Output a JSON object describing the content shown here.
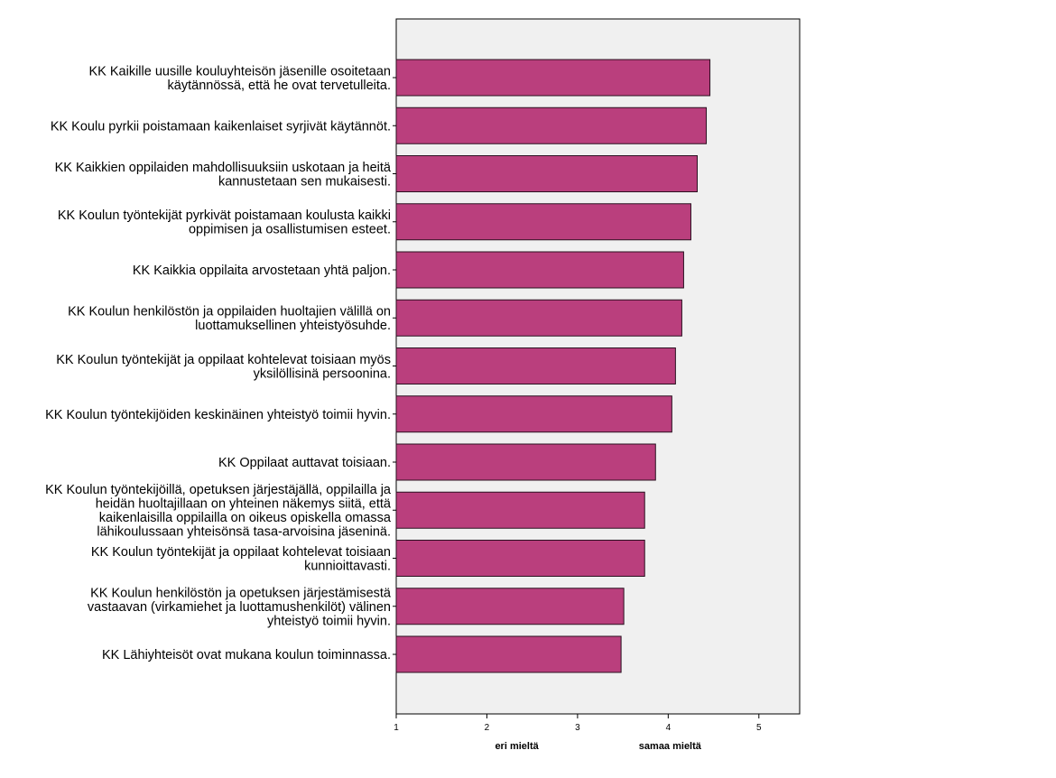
{
  "chart_data": {
    "type": "bar",
    "orientation": "horizontal",
    "categories": [
      [
        "KK Kaikille uusille kouluyhteisön jäsenille osoitetaan",
        "käytännössä, että he ovat tervetulleita."
      ],
      [
        "KK Koulu pyrkii poistamaan kaikenlaiset syrjivät käytännöt."
      ],
      [
        "KK Kaikkien oppilaiden mahdollisuuksiin uskotaan ja heitä",
        "kannustetaan sen mukaisesti."
      ],
      [
        "KK Koulun työntekijät pyrkivät poistamaan koulusta kaikki",
        "oppimisen ja osallistumisen esteet."
      ],
      [
        "KK Kaikkia oppilaita arvostetaan yhtä paljon."
      ],
      [
        "KK Koulun henkilöstön ja oppilaiden huoltajien välillä on",
        "luottamuksellinen yhteistyösuhde."
      ],
      [
        "KK  Koulun työntekijät ja oppilaat kohtelevat toisiaan myös",
        "yksilöllisinä persoonina."
      ],
      [
        "KK Koulun työntekijöiden keskinäinen yhteistyö toimii hyvin."
      ],
      [
        "KK Oppilaat auttavat toisiaan."
      ],
      [
        "KK Koulun työntekijöillä, opetuksen järjestäjällä, oppilailla ja",
        "heidän huoltajillaan on yhteinen näkemys siitä, että",
        "kaikenlaisilla oppilailla on oikeus opiskella omassa",
        "lähikoulussaan yhteisönsä tasa-arvoisina jäseninä."
      ],
      [
        "KK Koulun työntekijät ja oppilaat kohtelevat toisiaan",
        "kunnioittavasti."
      ],
      [
        "KK Koulun henkilöstön ja opetuksen järjestämisestä",
        "vastaavan (virkamiehet ja luottamushenkilöt) välinen",
        "yhteistyö toimii hyvin."
      ],
      [
        "KK Lähiyhteisöt ovat mukana koulun toiminnassa."
      ]
    ],
    "values": [
      4.46,
      4.42,
      4.32,
      4.25,
      4.17,
      4.15,
      4.08,
      4.04,
      3.86,
      3.74,
      3.74,
      3.51,
      3.48
    ],
    "xlim": [
      1,
      5.45
    ],
    "xticks": [
      1,
      2,
      3,
      4,
      5
    ],
    "tick_labels": [
      "1",
      "2",
      "3",
      "4",
      "5"
    ],
    "annotations": [
      {
        "text": "eri mieltä",
        "x": 2.33
      },
      {
        "text": "samaa mieltä",
        "x": 4.02
      }
    ],
    "title": "",
    "xlabel": "",
    "ylabel": "",
    "grid": false,
    "legend": "none",
    "colors": {
      "bar_fill": "#BA3F7D",
      "bar_stroke": "#2A1020",
      "plot_background": "#F0F0F0",
      "axis": "#000000"
    }
  }
}
